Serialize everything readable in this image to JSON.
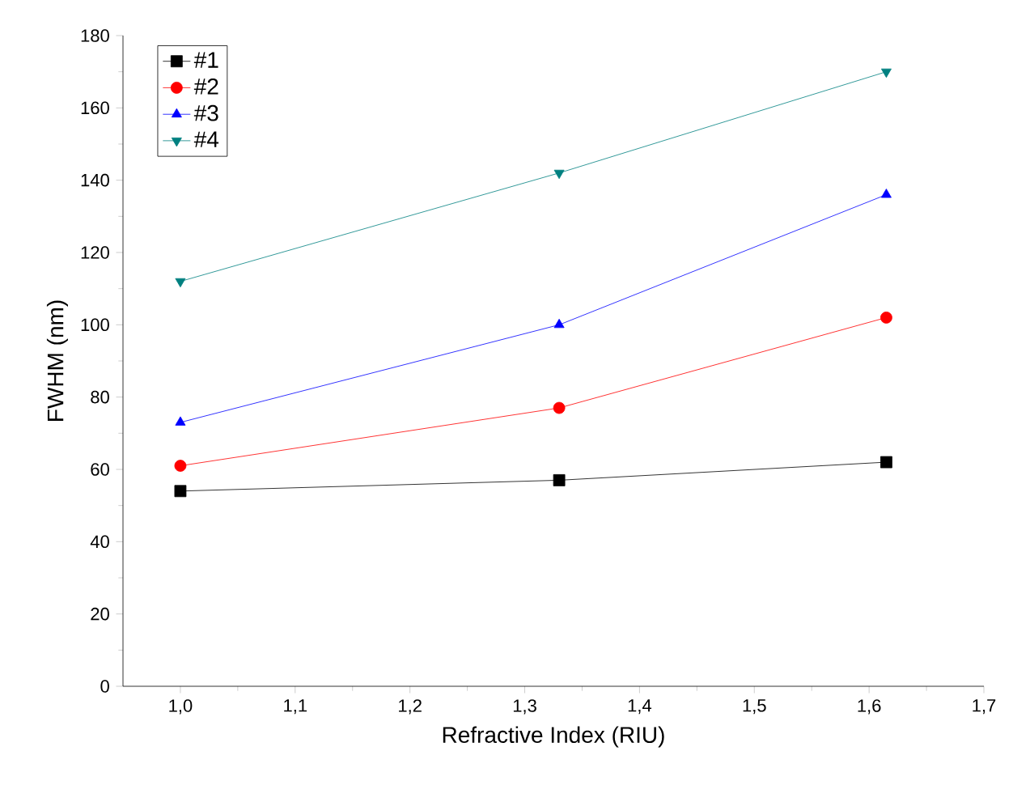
{
  "chart_data": {
    "type": "line",
    "xlabel": "Refractive Index (RIU)",
    "ylabel": "FWHM (nm)",
    "x": [
      1.0,
      1.33,
      1.615
    ],
    "series": [
      {
        "name": "#1",
        "color": "#000000",
        "marker": "square",
        "values": [
          54,
          57,
          62
        ]
      },
      {
        "name": "#2",
        "color": "#ff0000",
        "marker": "circle",
        "values": [
          61,
          77,
          102
        ]
      },
      {
        "name": "#3",
        "color": "#0000ff",
        "marker": "triangle",
        "values": [
          73,
          100,
          136
        ]
      },
      {
        "name": "#4",
        "color": "#008080",
        "marker": "triangle-down",
        "values": [
          112,
          142,
          170
        ]
      }
    ],
    "xlim": [
      0.95,
      1.7
    ],
    "xticks": [
      {
        "value": 1.0,
        "label": "1,0"
      },
      {
        "value": 1.1,
        "label": "1,1"
      },
      {
        "value": 1.2,
        "label": "1,2"
      },
      {
        "value": 1.3,
        "label": "1,3"
      },
      {
        "value": 1.4,
        "label": "1,4"
      },
      {
        "value": 1.5,
        "label": "1,5"
      },
      {
        "value": 1.6,
        "label": "1,6"
      },
      {
        "value": 1.7,
        "label": "1,7"
      }
    ],
    "ylim": [
      0,
      180
    ],
    "yticks": [
      0,
      20,
      40,
      60,
      80,
      100,
      120,
      140,
      160,
      180
    ],
    "grid": false,
    "legend": "top left",
    "line_style": "solid"
  }
}
